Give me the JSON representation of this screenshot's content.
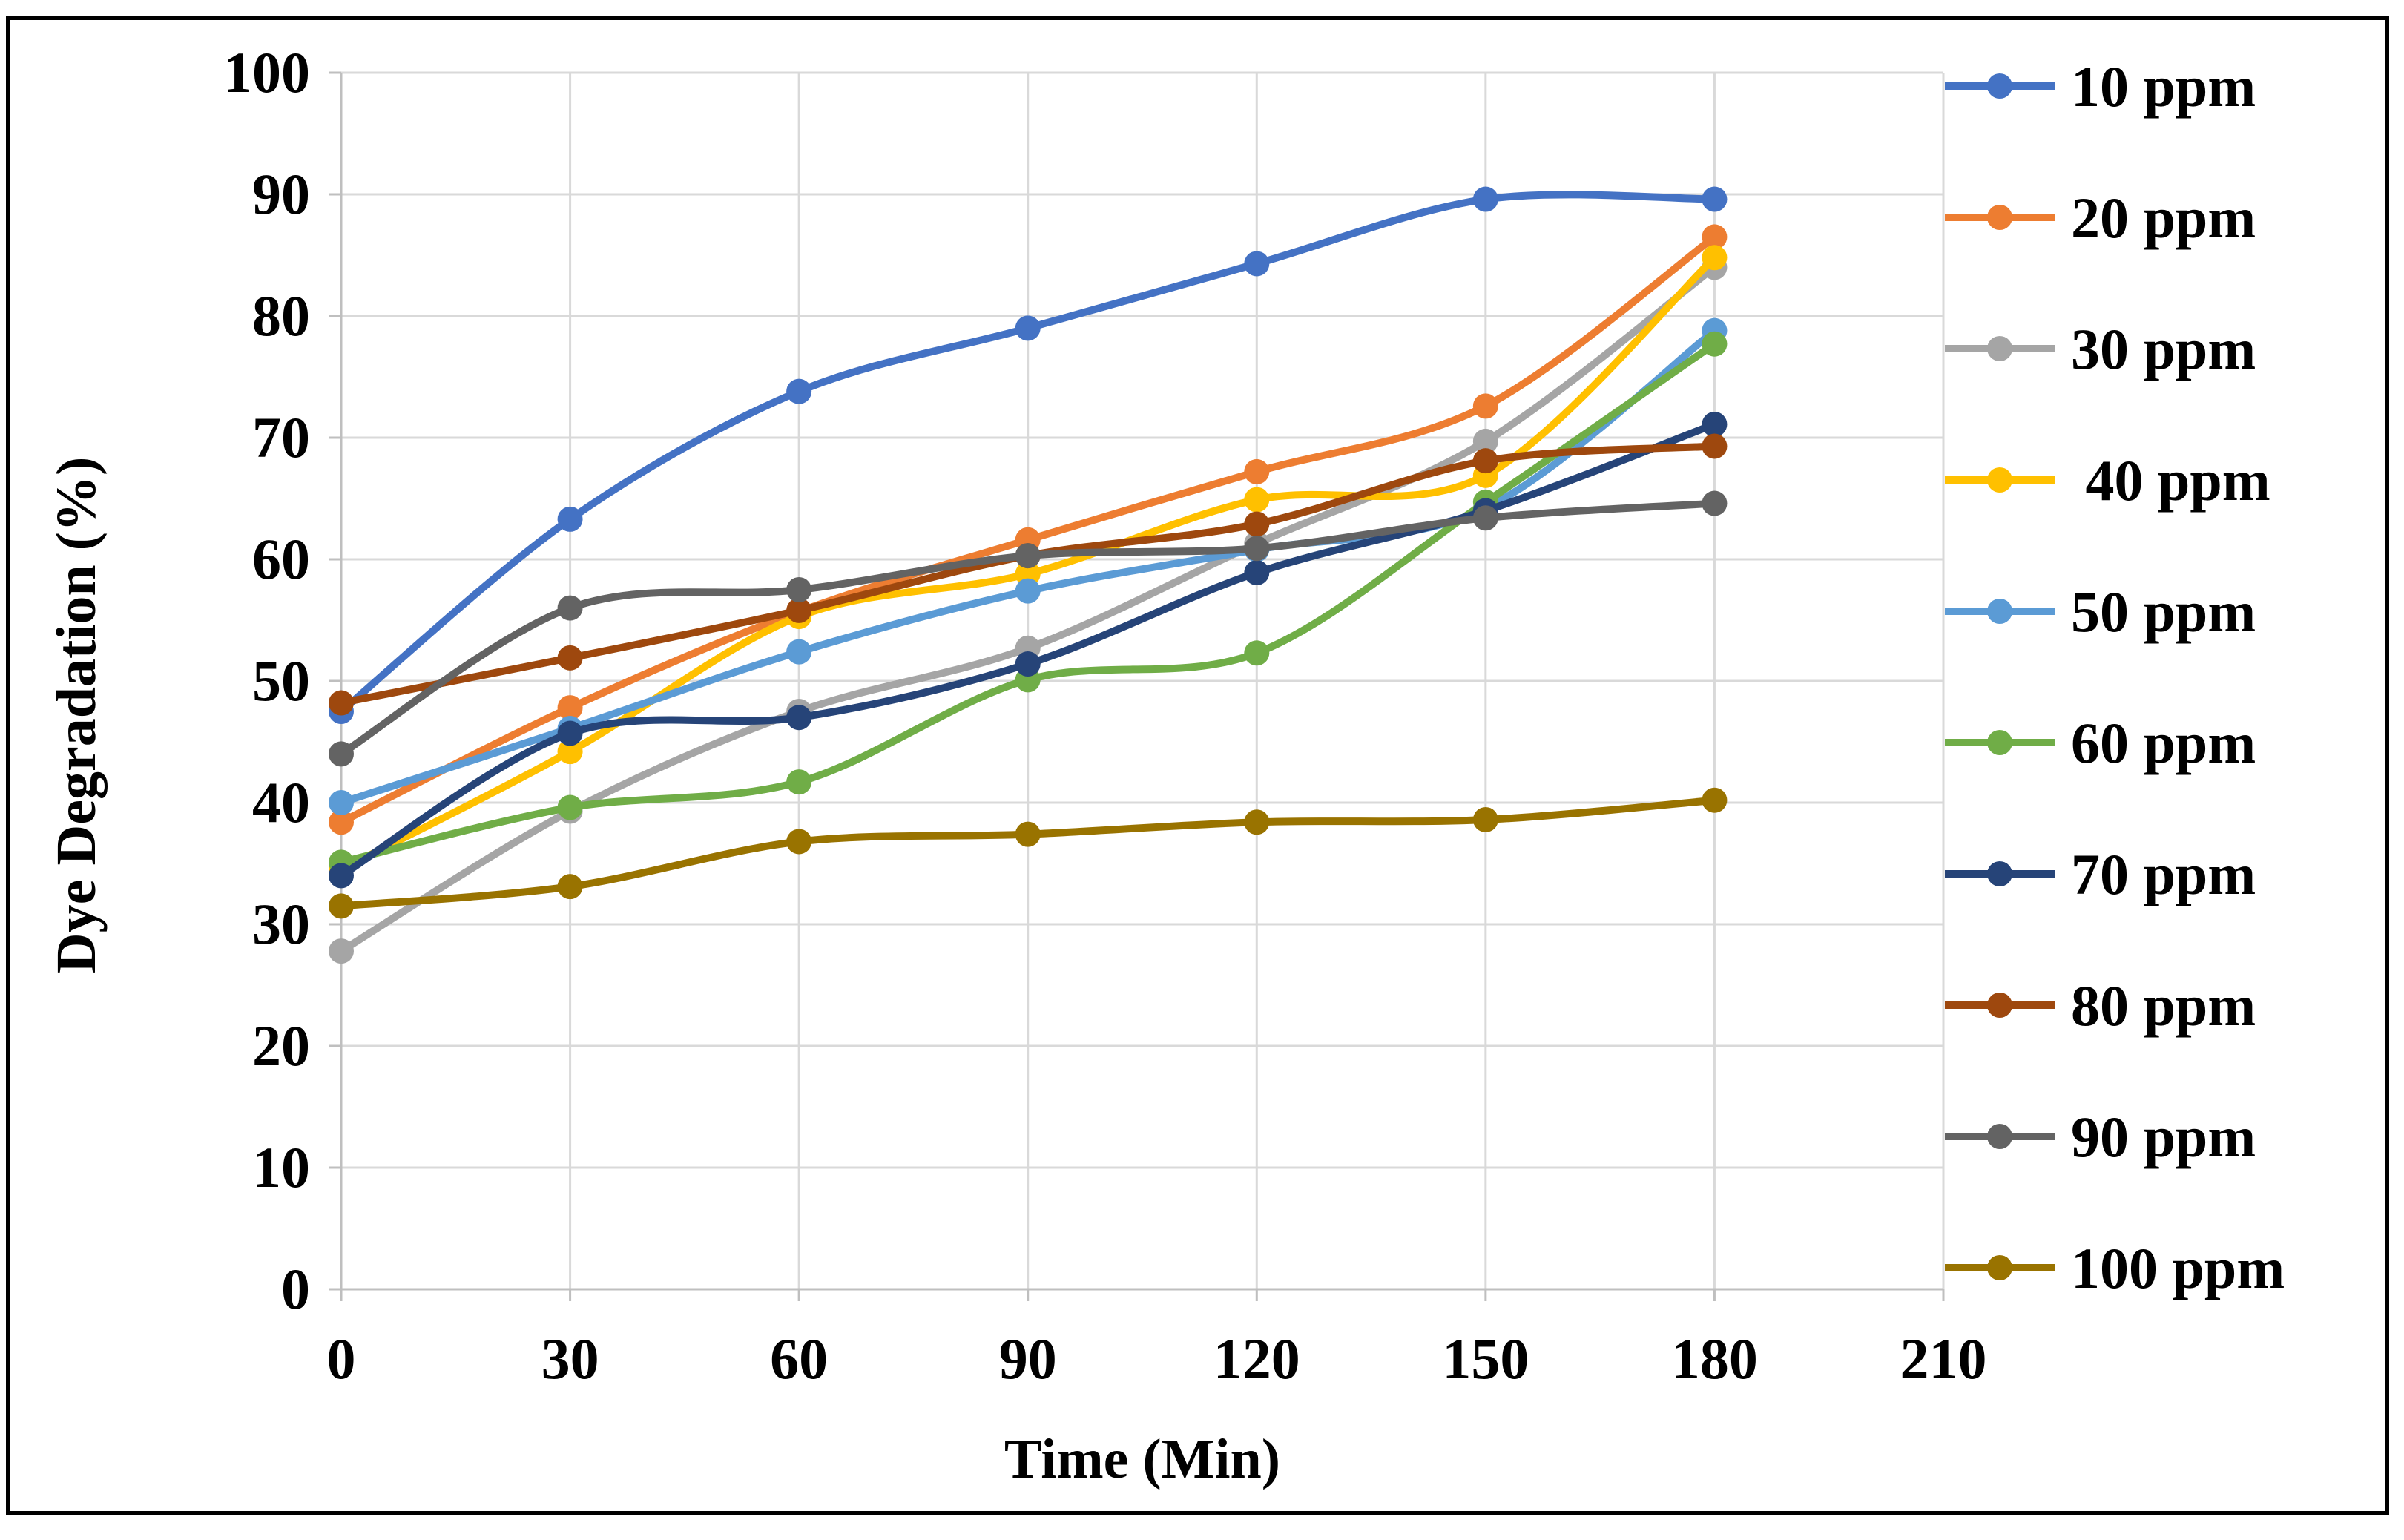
{
  "chart_data": {
    "type": "line",
    "xlabel": "Time (Min)",
    "ylabel": "Dye Degradation (%)",
    "xlim": [
      0,
      210
    ],
    "ylim": [
      0,
      100
    ],
    "x_ticks": [
      0,
      30,
      60,
      90,
      120,
      150,
      180,
      210
    ],
    "y_ticks": [
      0,
      10,
      20,
      30,
      40,
      50,
      60,
      70,
      80,
      90,
      100
    ],
    "grid": true,
    "legend_position": "right",
    "smoothed": true,
    "x": [
      0,
      30,
      60,
      90,
      120,
      150,
      180
    ],
    "series": [
      {
        "name": "10 ppm",
        "color": "#4472C4",
        "values": [
          47.5,
          63.3,
          73.8,
          79.0,
          84.3,
          89.6,
          89.6
        ]
      },
      {
        "name": "20 ppm",
        "color": "#ED7D31",
        "values": [
          38.4,
          47.8,
          55.7,
          61.6,
          67.2,
          72.6,
          86.5
        ]
      },
      {
        "name": "30 ppm",
        "color": "#A5A5A5",
        "values": [
          27.8,
          39.3,
          47.5,
          52.7,
          61.3,
          69.7,
          84.0
        ]
      },
      {
        "name": " 40 ppm",
        "color": "#FFC000",
        "values": [
          34.5,
          44.2,
          55.3,
          58.8,
          64.9,
          66.9,
          84.8
        ]
      },
      {
        "name": "50 ppm",
        "color": "#5B9BD5",
        "values": [
          40.0,
          46.1,
          52.4,
          57.4,
          60.8,
          64.2,
          78.8
        ]
      },
      {
        "name": "60 ppm",
        "color": "#70AD47",
        "values": [
          35.1,
          39.6,
          41.7,
          50.1,
          52.3,
          64.7,
          77.7
        ]
      },
      {
        "name": "70 ppm",
        "color": "#264478",
        "values": [
          34.0,
          45.7,
          47.0,
          51.4,
          58.9,
          64.0,
          71.1
        ]
      },
      {
        "name": "80 ppm",
        "color": "#9E480E",
        "values": [
          48.2,
          51.9,
          55.8,
          60.3,
          62.9,
          68.1,
          69.3
        ]
      },
      {
        "name": "90 ppm",
        "color": "#636363",
        "values": [
          44.0,
          56.0,
          57.5,
          60.3,
          60.9,
          63.4,
          64.6
        ]
      },
      {
        "name": "100 ppm",
        "color": "#997300",
        "values": [
          31.5,
          33.1,
          36.8,
          37.4,
          38.4,
          38.6,
          40.2
        ]
      }
    ]
  }
}
